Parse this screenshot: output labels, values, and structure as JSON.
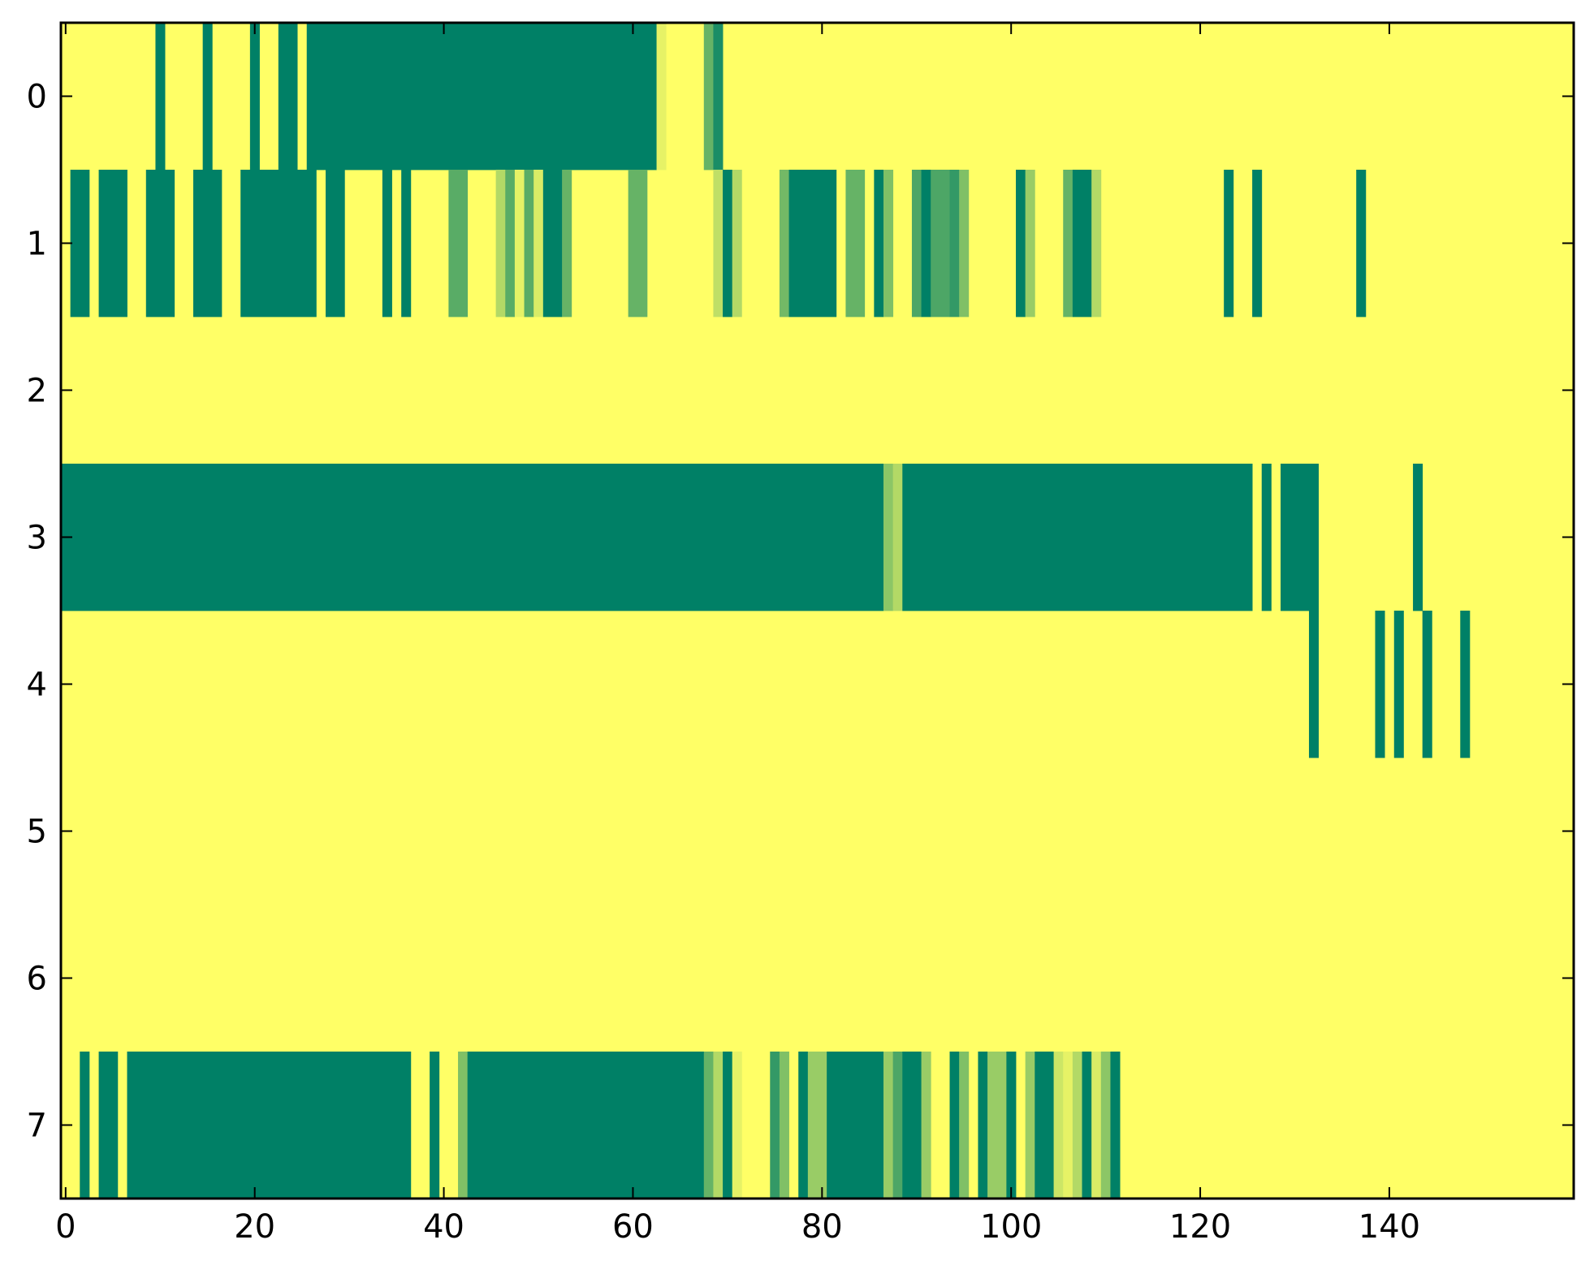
{
  "chart_data": {
    "type": "heatmap",
    "title": "",
    "xlabel": "",
    "ylabel": "",
    "xlim": [
      -0.5,
      159.5
    ],
    "ylim": [
      7.5,
      -0.5
    ],
    "x_ticks": [
      0,
      20,
      40,
      60,
      80,
      100,
      120,
      140
    ],
    "x_tick_labels": [
      "0",
      "20",
      "40",
      "60",
      "80",
      "100",
      "120",
      "140"
    ],
    "y_ticks": [
      0,
      1,
      2,
      3,
      4,
      5,
      6,
      7
    ],
    "y_tick_labels": [
      "0",
      "1",
      "2",
      "3",
      "4",
      "5",
      "6",
      "7"
    ],
    "colormap": "summer_r",
    "color_scale": {
      "low": "#ffff66",
      "mid": "#80c066",
      "high": "#008066"
    },
    "background_value": 0,
    "rows": [
      {
        "row": 0,
        "cells": [
          [
            10,
            10,
            1
          ],
          [
            15,
            15,
            1
          ],
          [
            20,
            20,
            1
          ],
          [
            23,
            24,
            1
          ],
          [
            26,
            62,
            1
          ],
          [
            63,
            63,
            0.1
          ],
          [
            68,
            68,
            0.6
          ],
          [
            69,
            69,
            0.9
          ]
        ]
      },
      {
        "row": 1,
        "cells": [
          [
            1,
            2,
            1
          ],
          [
            4,
            6,
            1
          ],
          [
            9,
            11,
            1
          ],
          [
            14,
            16,
            1
          ],
          [
            19,
            26,
            1
          ],
          [
            28,
            29,
            1
          ],
          [
            34,
            34,
            1
          ],
          [
            36,
            36,
            1
          ],
          [
            41,
            42,
            0.65
          ],
          [
            46,
            46,
            0.3
          ],
          [
            47,
            47,
            0.65
          ],
          [
            48,
            48,
            0.1
          ],
          [
            49,
            49,
            0.65
          ],
          [
            50,
            50,
            0.15
          ],
          [
            51,
            52,
            1
          ],
          [
            53,
            53,
            0.6
          ],
          [
            60,
            61,
            0.6
          ],
          [
            69,
            69,
            0.25
          ],
          [
            70,
            70,
            1
          ],
          [
            71,
            71,
            0.3
          ],
          [
            76,
            76,
            0.55
          ],
          [
            77,
            81,
            1
          ],
          [
            83,
            84,
            0.6
          ],
          [
            86,
            86,
            1
          ],
          [
            87,
            87,
            0.5
          ],
          [
            90,
            90,
            0.7
          ],
          [
            91,
            91,
            1
          ],
          [
            92,
            93,
            0.7
          ],
          [
            94,
            94,
            0.8
          ],
          [
            95,
            95,
            0.5
          ],
          [
            101,
            101,
            1
          ],
          [
            102,
            102,
            0.4
          ],
          [
            106,
            106,
            0.6
          ],
          [
            107,
            108,
            1
          ],
          [
            109,
            109,
            0.3
          ],
          [
            123,
            123,
            1
          ],
          [
            126,
            126,
            1
          ],
          [
            137,
            137,
            1
          ]
        ]
      },
      {
        "row": 3,
        "cells": [
          [
            0,
            86,
            1
          ],
          [
            87,
            87,
            0.45
          ],
          [
            88,
            88,
            0.3
          ],
          [
            89,
            125,
            1
          ],
          [
            127,
            127,
            1
          ],
          [
            129,
            132,
            1
          ],
          [
            143,
            143,
            1
          ]
        ]
      },
      {
        "row": 4,
        "cells": [
          [
            132,
            132,
            1
          ],
          [
            139,
            139,
            1
          ],
          [
            141,
            141,
            1
          ],
          [
            144,
            144,
            1
          ],
          [
            148,
            148,
            1
          ]
        ]
      },
      {
        "row": 7,
        "cells": [
          [
            2,
            2,
            1
          ],
          [
            4,
            5,
            1
          ],
          [
            7,
            36,
            1
          ],
          [
            39,
            39,
            1
          ],
          [
            42,
            42,
            0.5
          ],
          [
            43,
            67,
            1
          ],
          [
            68,
            68,
            0.6
          ],
          [
            69,
            69,
            0.3
          ],
          [
            70,
            70,
            1
          ],
          [
            71,
            71,
            0.1
          ],
          [
            75,
            75,
            0.8
          ],
          [
            76,
            76,
            0.5
          ],
          [
            78,
            78,
            1
          ],
          [
            79,
            80,
            0.4
          ],
          [
            81,
            86,
            1
          ],
          [
            87,
            87,
            0.4
          ],
          [
            88,
            88,
            0.7
          ],
          [
            89,
            90,
            1
          ],
          [
            91,
            91,
            0.4
          ],
          [
            94,
            94,
            1
          ],
          [
            95,
            95,
            0.5
          ],
          [
            97,
            97,
            1
          ],
          [
            98,
            99,
            0.4
          ],
          [
            100,
            100,
            1
          ],
          [
            102,
            102,
            0.4
          ],
          [
            103,
            104,
            1
          ],
          [
            105,
            105,
            0.2
          ],
          [
            106,
            106,
            0.1
          ],
          [
            107,
            107,
            0.3
          ],
          [
            108,
            108,
            1
          ],
          [
            109,
            109,
            0.15
          ],
          [
            110,
            110,
            0.45
          ],
          [
            111,
            111,
            1
          ]
        ]
      }
    ]
  }
}
